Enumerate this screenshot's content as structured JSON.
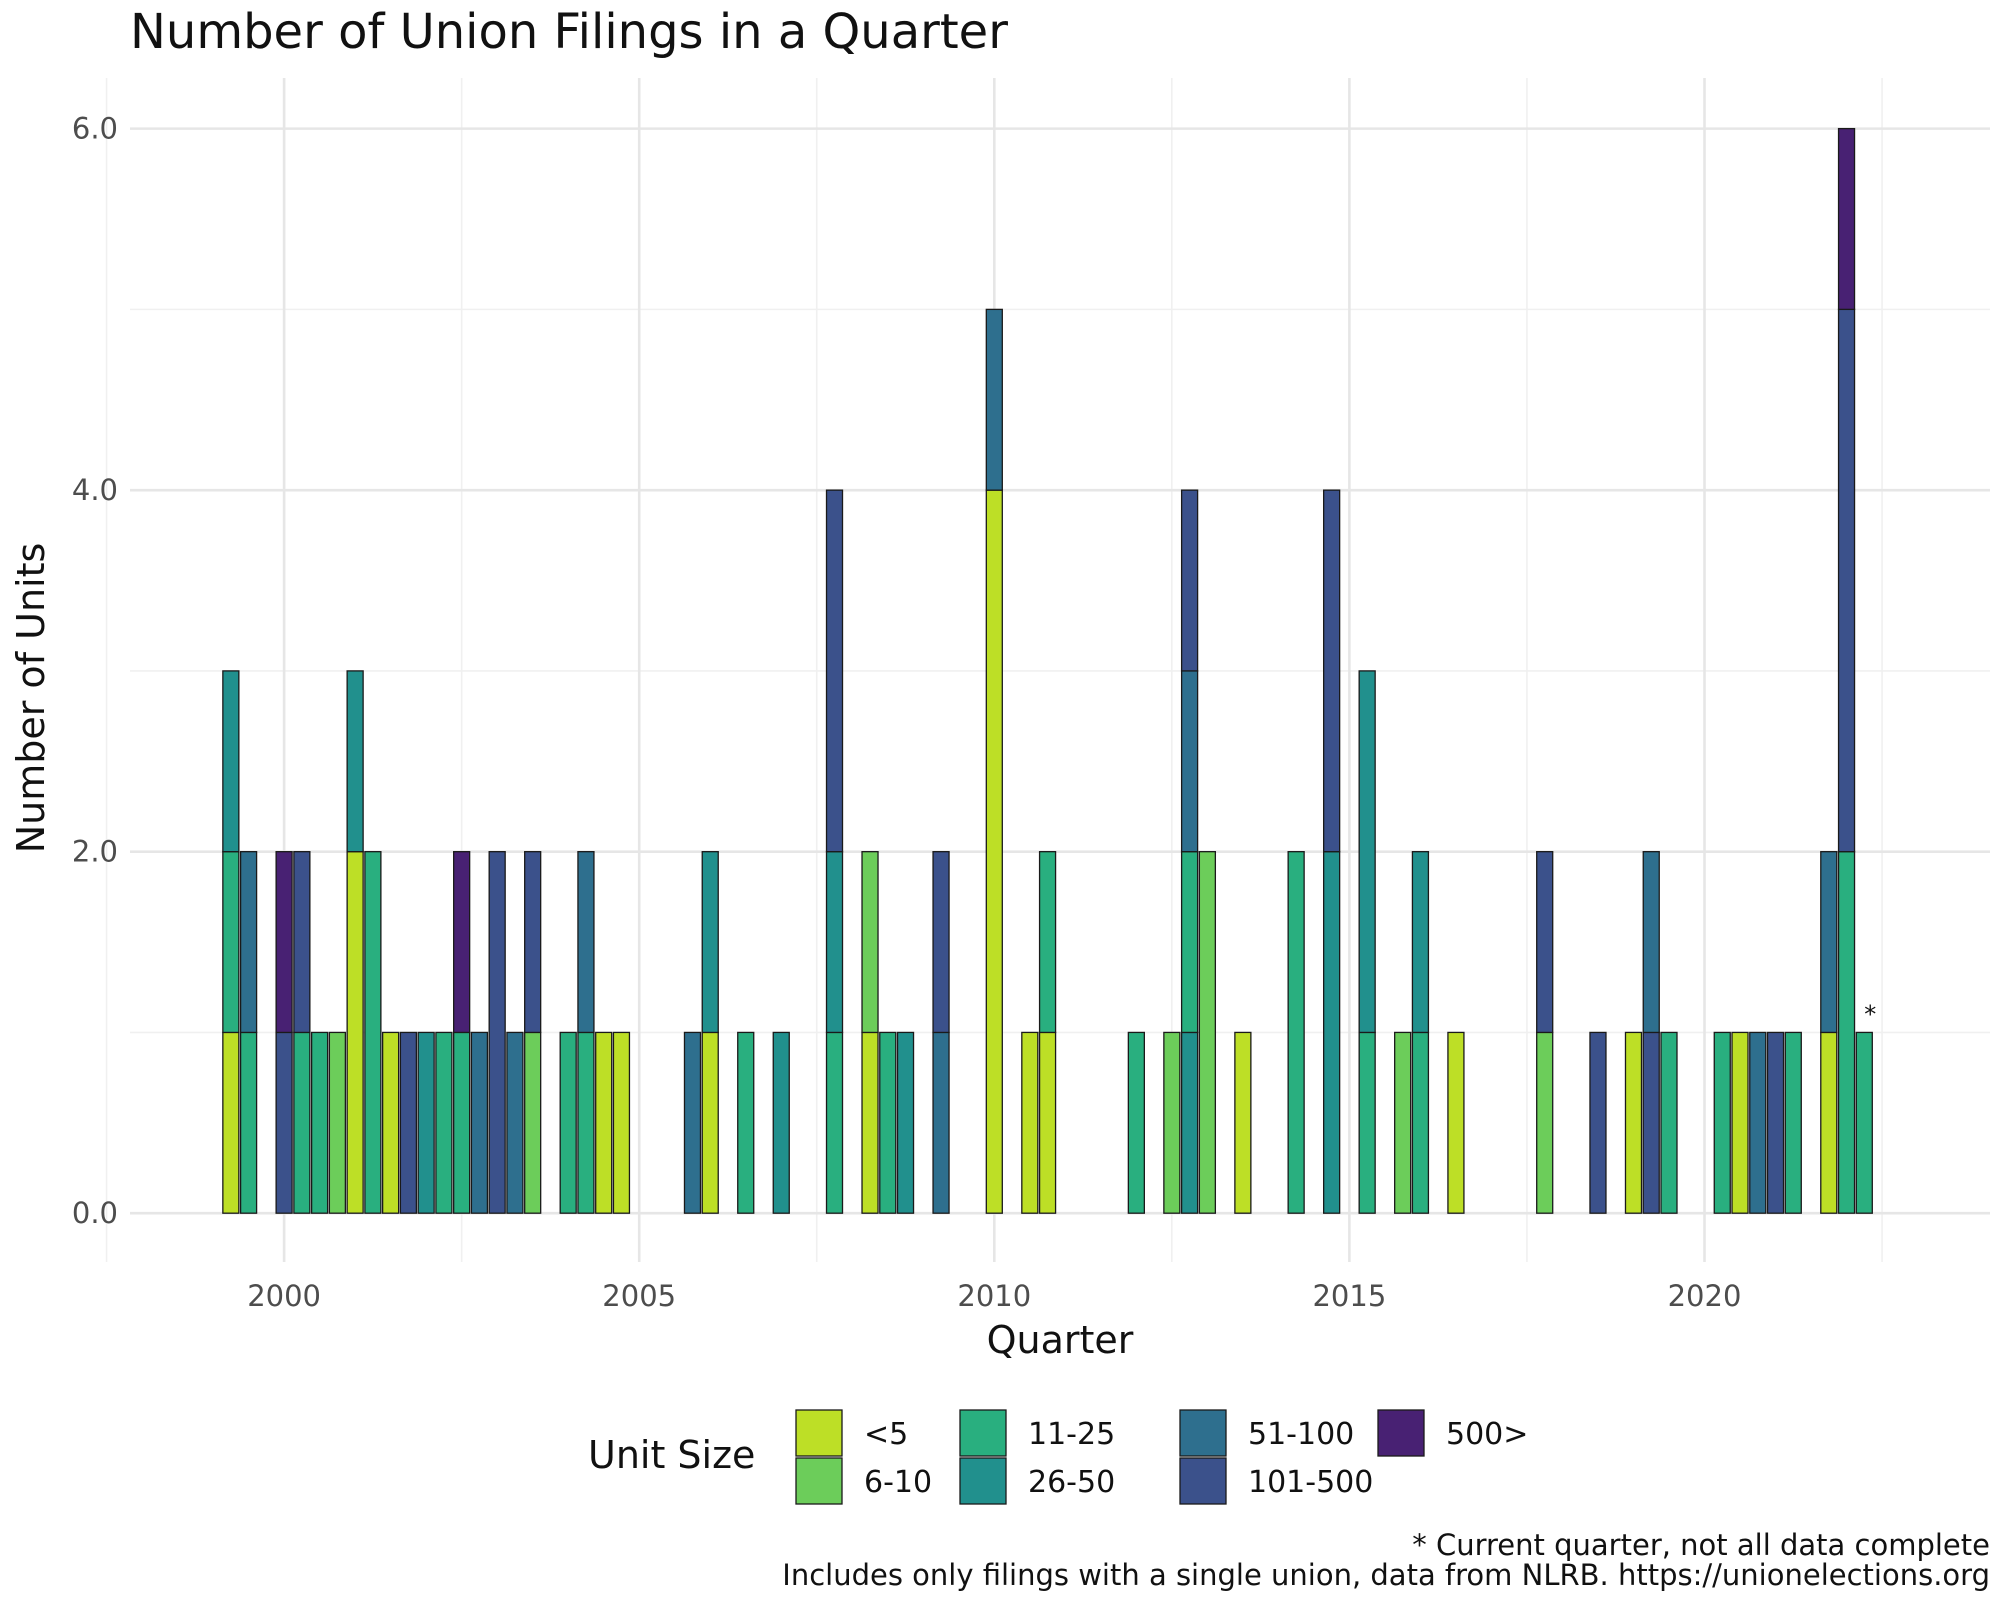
{
  "chart_data": {
    "type": "bar",
    "stacked": true,
    "title": "Number of Union Filings in a Quarter",
    "xlabel": "Quarter",
    "ylabel": "Number of Units",
    "xlim": [
      1997.83,
      2024.02
    ],
    "ylim": [
      -0.27,
      6.28
    ],
    "xticks": [
      2000,
      2005,
      2010,
      2015,
      2020
    ],
    "yticks": [
      0.0,
      2.0,
      4.0,
      6.0
    ],
    "ytick_labels": [
      "0.0",
      "2.0",
      "4.0",
      "6.0"
    ],
    "grid": true,
    "legend": {
      "title": "Unit Size",
      "placement": "bottom",
      "entries": [
        "<5",
        "6-10",
        "11-25",
        "26-50",
        "51-100",
        "101-500",
        "500>"
      ]
    },
    "series_colors": {
      "<5": "#bddf26",
      "6-10": "#6ccd5a",
      "11-25": "#29af7f",
      "26-50": "#21908d",
      "51-100": "#2e6f8e",
      "101-500": "#3b518b",
      "500>": "#482173"
    },
    "bars": [
      {
        "x": 1999.25,
        "segments": [
          [
            "<5",
            1
          ],
          [
            "11-25",
            1
          ],
          [
            "26-50",
            1
          ]
        ]
      },
      {
        "x": 1999.5,
        "segments": [
          [
            "11-25",
            1
          ],
          [
            "51-100",
            1
          ]
        ]
      },
      {
        "x": 2000.0,
        "segments": [
          [
            "101-500",
            1
          ],
          [
            "500>",
            1
          ]
        ]
      },
      {
        "x": 2000.25,
        "segments": [
          [
            "11-25",
            1
          ],
          [
            "101-500",
            1
          ]
        ]
      },
      {
        "x": 2000.5,
        "segments": [
          [
            "11-25",
            1
          ]
        ]
      },
      {
        "x": 2000.75,
        "segments": [
          [
            "6-10",
            1
          ]
        ]
      },
      {
        "x": 2001.0,
        "segments": [
          [
            "<5",
            2
          ],
          [
            "26-50",
            1
          ]
        ]
      },
      {
        "x": 2001.25,
        "segments": [
          [
            "11-25",
            2
          ]
        ]
      },
      {
        "x": 2001.5,
        "segments": [
          [
            "<5",
            1
          ]
        ]
      },
      {
        "x": 2001.75,
        "segments": [
          [
            "101-500",
            1
          ]
        ]
      },
      {
        "x": 2002.0,
        "segments": [
          [
            "26-50",
            1
          ]
        ]
      },
      {
        "x": 2002.25,
        "segments": [
          [
            "11-25",
            1
          ]
        ]
      },
      {
        "x": 2002.5,
        "segments": [
          [
            "11-25",
            1
          ],
          [
            "500>",
            1
          ]
        ]
      },
      {
        "x": 2002.75,
        "segments": [
          [
            "51-100",
            1
          ]
        ]
      },
      {
        "x": 2003.0,
        "segments": [
          [
            "101-500",
            2
          ]
        ]
      },
      {
        "x": 2003.25,
        "segments": [
          [
            "51-100",
            1
          ]
        ]
      },
      {
        "x": 2003.5,
        "segments": [
          [
            "6-10",
            1
          ],
          [
            "101-500",
            1
          ]
        ]
      },
      {
        "x": 2004.0,
        "segments": [
          [
            "11-25",
            1
          ]
        ]
      },
      {
        "x": 2004.25,
        "segments": [
          [
            "11-25",
            1
          ],
          [
            "51-100",
            1
          ]
        ]
      },
      {
        "x": 2004.5,
        "segments": [
          [
            "<5",
            1
          ]
        ]
      },
      {
        "x": 2004.75,
        "segments": [
          [
            "<5",
            1
          ]
        ]
      },
      {
        "x": 2005.75,
        "segments": [
          [
            "51-100",
            1
          ]
        ]
      },
      {
        "x": 2006.0,
        "segments": [
          [
            "<5",
            1
          ],
          [
            "26-50",
            1
          ]
        ]
      },
      {
        "x": 2006.5,
        "segments": [
          [
            "11-25",
            1
          ]
        ]
      },
      {
        "x": 2007.0,
        "segments": [
          [
            "26-50",
            1
          ]
        ]
      },
      {
        "x": 2007.75,
        "segments": [
          [
            "11-25",
            1
          ],
          [
            "26-50",
            1
          ],
          [
            "101-500",
            2
          ]
        ]
      },
      {
        "x": 2008.25,
        "segments": [
          [
            "<5",
            1
          ],
          [
            "6-10",
            1
          ]
        ]
      },
      {
        "x": 2008.5,
        "segments": [
          [
            "11-25",
            1
          ]
        ]
      },
      {
        "x": 2008.75,
        "segments": [
          [
            "26-50",
            1
          ]
        ]
      },
      {
        "x": 2009.25,
        "segments": [
          [
            "51-100",
            1
          ],
          [
            "101-500",
            1
          ]
        ]
      },
      {
        "x": 2010.0,
        "segments": [
          [
            "<5",
            4
          ],
          [
            "51-100",
            1
          ]
        ]
      },
      {
        "x": 2010.5,
        "segments": [
          [
            "<5",
            1
          ]
        ]
      },
      {
        "x": 2010.75,
        "segments": [
          [
            "<5",
            1
          ],
          [
            "11-25",
            1
          ]
        ]
      },
      {
        "x": 2012.0,
        "segments": [
          [
            "11-25",
            1
          ]
        ]
      },
      {
        "x": 2012.5,
        "segments": [
          [
            "6-10",
            1
          ]
        ]
      },
      {
        "x": 2012.75,
        "segments": [
          [
            "26-50",
            1
          ],
          [
            "11-25",
            1
          ],
          [
            "51-100",
            1
          ],
          [
            "101-500",
            1
          ]
        ]
      },
      {
        "x": 2013.0,
        "segments": [
          [
            "6-10",
            2
          ]
        ]
      },
      {
        "x": 2013.5,
        "segments": [
          [
            "<5",
            1
          ]
        ]
      },
      {
        "x": 2014.25,
        "segments": [
          [
            "11-25",
            2
          ]
        ]
      },
      {
        "x": 2014.75,
        "segments": [
          [
            "26-50",
            2
          ],
          [
            "101-500",
            2
          ]
        ]
      },
      {
        "x": 2015.25,
        "segments": [
          [
            "11-25",
            1
          ],
          [
            "26-50",
            2
          ]
        ]
      },
      {
        "x": 2015.75,
        "segments": [
          [
            "6-10",
            1
          ]
        ]
      },
      {
        "x": 2016.0,
        "segments": [
          [
            "11-25",
            1
          ],
          [
            "26-50",
            1
          ]
        ]
      },
      {
        "x": 2016.5,
        "segments": [
          [
            "<5",
            1
          ]
        ]
      },
      {
        "x": 2017.75,
        "segments": [
          [
            "6-10",
            1
          ],
          [
            "101-500",
            1
          ]
        ]
      },
      {
        "x": 2018.5,
        "segments": [
          [
            "101-500",
            1
          ]
        ]
      },
      {
        "x": 2019.0,
        "segments": [
          [
            "<5",
            1
          ]
        ]
      },
      {
        "x": 2019.25,
        "segments": [
          [
            "101-500",
            1
          ],
          [
            "51-100",
            1
          ]
        ]
      },
      {
        "x": 2019.5,
        "segments": [
          [
            "11-25",
            1
          ]
        ]
      },
      {
        "x": 2020.25,
        "segments": [
          [
            "11-25",
            1
          ]
        ]
      },
      {
        "x": 2020.5,
        "segments": [
          [
            "<5",
            1
          ]
        ]
      },
      {
        "x": 2020.75,
        "segments": [
          [
            "51-100",
            1
          ]
        ]
      },
      {
        "x": 2021.0,
        "segments": [
          [
            "101-500",
            1
          ]
        ]
      },
      {
        "x": 2021.25,
        "segments": [
          [
            "11-25",
            1
          ]
        ]
      },
      {
        "x": 2021.75,
        "segments": [
          [
            "<5",
            1
          ],
          [
            "51-100",
            1
          ]
        ]
      },
      {
        "x": 2022.0,
        "segments": [
          [
            "11-25",
            2
          ],
          [
            "101-500",
            3
          ],
          [
            "500>",
            1
          ]
        ]
      },
      {
        "x": 2022.25,
        "segments": [
          [
            "11-25",
            1
          ]
        ],
        "annotation": "*"
      }
    ],
    "captions": [
      "* Current quarter, not all data complete",
      "Includes only filings with a single union, data from NLRB. https://unionelections.org"
    ]
  }
}
